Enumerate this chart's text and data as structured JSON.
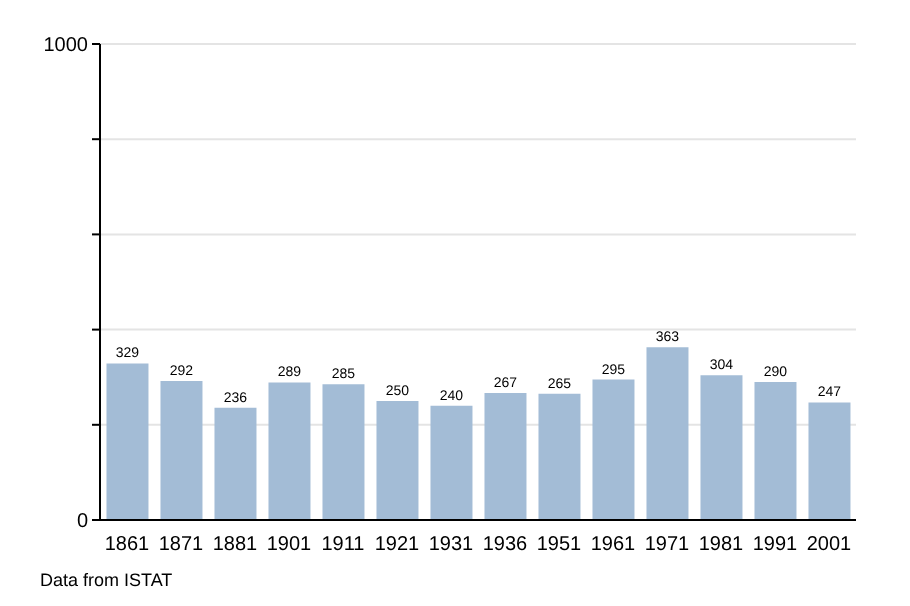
{
  "chart_data": {
    "type": "bar",
    "categories": [
      "1861",
      "1871",
      "1881",
      "1901",
      "1911",
      "1921",
      "1931",
      "1936",
      "1951",
      "1961",
      "1971",
      "1981",
      "1991",
      "2001"
    ],
    "values": [
      329,
      292,
      236,
      289,
      285,
      250,
      240,
      267,
      265,
      295,
      363,
      304,
      290,
      247
    ],
    "color": "#a3bcd6",
    "ylim": [
      0,
      1000
    ],
    "yticks": [
      0,
      {
        "value": 200,
        "label": null
      },
      {
        "value": 400,
        "label": null
      },
      {
        "value": 600,
        "label": null
      },
      {
        "value": 800,
        "label": null
      },
      1000
    ],
    "grid": "y",
    "data_labels": true,
    "annotations": [
      "Data from ISTAT"
    ]
  }
}
